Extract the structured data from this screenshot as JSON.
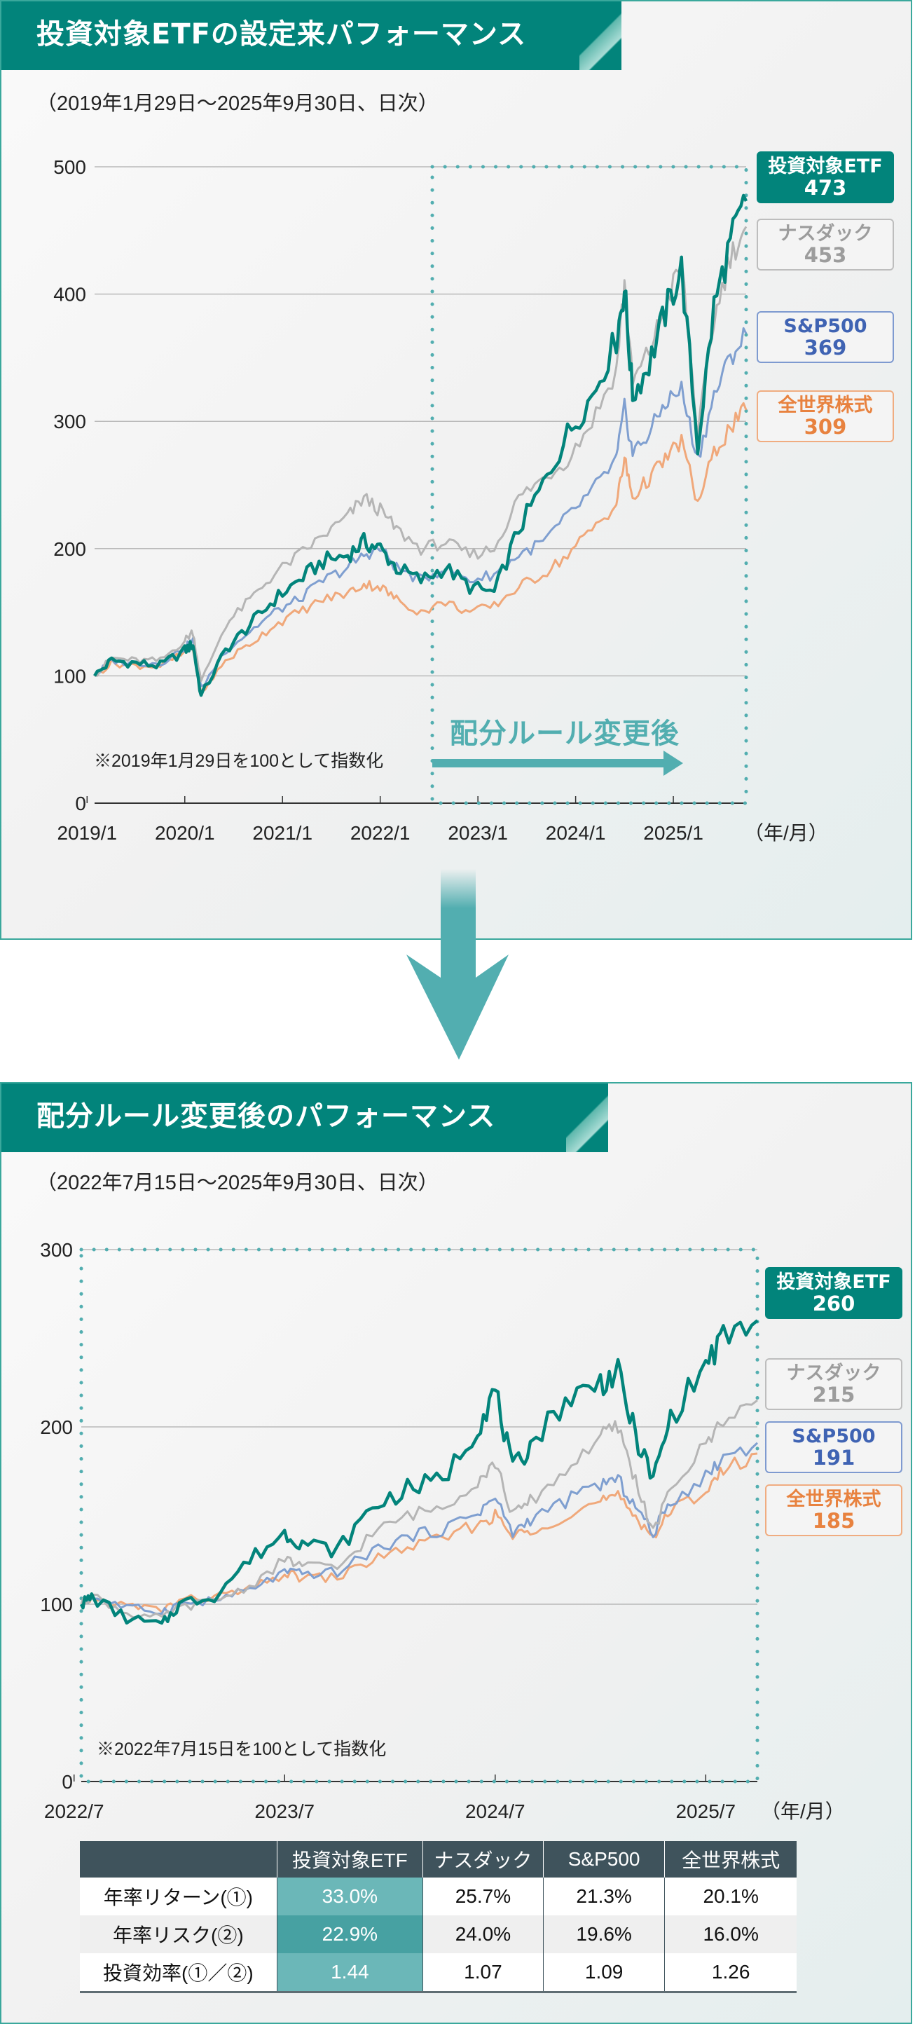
{
  "panel1": {
    "title": "投資対象ETFの設定来パフォーマンス",
    "subtitle": "（2019年1月29日～2025年9月30日、日次）",
    "note": "※2019年1月29日を100として指数化",
    "after_rule_label": "配分ルール変更後",
    "x_unit": "（年/月）",
    "legend": [
      {
        "name": "投資対象ETF",
        "value": "473"
      },
      {
        "name": "ナスダック",
        "value": "453"
      },
      {
        "name": "S&P500",
        "value": "369"
      },
      {
        "name": "全世界株式",
        "value": "309"
      }
    ]
  },
  "panel2": {
    "title": "配分ルール変更後のパフォーマンス",
    "subtitle": "（2022年7月15日～2025年9月30日、日次）",
    "note": "※2022年7月15日を100として指数化",
    "x_unit": "（年/月）",
    "legend": [
      {
        "name": "投資対象ETF",
        "value": "260"
      },
      {
        "name": "ナスダック",
        "value": "215"
      },
      {
        "name": "S&P500",
        "value": "191"
      },
      {
        "name": "全世界株式",
        "value": "185"
      }
    ]
  },
  "colors": {
    "etf": "#02847b",
    "nasdaq": "#b5b5b5",
    "sp500": "#7f9fd0",
    "world": "#f0a87a",
    "accent": "#52aeb0",
    "header": "#02847b"
  },
  "table": {
    "headers": [
      "",
      "投資対象ETF",
      "ナスダック",
      "S&P500",
      "全世界株式"
    ],
    "rows": [
      {
        "label": "年率リターン(①)",
        "values": [
          "33.0%",
          "25.7%",
          "21.3%",
          "20.1%"
        ]
      },
      {
        "label": "年率リスク(②)",
        "values": [
          "22.9%",
          "24.0%",
          "19.6%",
          "16.0%"
        ]
      },
      {
        "label": "投資効率(①／②)",
        "values": [
          "1.44",
          "1.07",
          "1.09",
          "1.26"
        ]
      }
    ]
  },
  "chart_data": [
    {
      "type": "line",
      "title": "投資対象ETFの設定来パフォーマンス",
      "subtitle": "（2019年1月29日～2025年9月30日、日次）",
      "xlabel": "（年/月）",
      "ylabel": "",
      "ylim": [
        0,
        500
      ],
      "yticks": [
        0,
        100,
        200,
        300,
        400,
        500
      ],
      "xticks": [
        "2019/1",
        "2020/1",
        "2021/1",
        "2022/1",
        "2023/1",
        "2024/1",
        "2025/1"
      ],
      "grid": true,
      "legend_position": "right",
      "annotations": [
        "※2019年1月29日を100として指数化",
        "配分ルール変更後 (from 2022/7/15)"
      ],
      "highlight_region": {
        "start": "2022/7/15",
        "end": "2025/9/30"
      },
      "x": [
        "2019/1",
        "2019/4",
        "2019/7",
        "2019/10",
        "2020/1",
        "2020/2",
        "2020/3",
        "2020/6",
        "2020/9",
        "2020/12",
        "2021/3",
        "2021/6",
        "2021/9",
        "2021/11",
        "2022/1",
        "2022/3",
        "2022/6",
        "2022/9",
        "2022/12",
        "2023/3",
        "2023/6",
        "2023/9",
        "2023/12",
        "2024/3",
        "2024/6",
        "2024/7",
        "2024/8",
        "2024/10",
        "2024/12",
        "2025/2",
        "2025/4",
        "2025/6",
        "2025/8",
        "2025/9"
      ],
      "series": [
        {
          "name": "投資対象ETF",
          "values": [
            100,
            112,
            110,
            108,
            120,
            125,
            84,
            120,
            140,
            160,
            175,
            190,
            195,
            205,
            200,
            185,
            175,
            185,
            170,
            165,
            215,
            250,
            290,
            320,
            365,
            405,
            320,
            345,
            385,
            420,
            280,
            390,
            440,
            473
          ]
        },
        {
          "name": "ナスダック",
          "values": [
            100,
            114,
            112,
            112,
            128,
            135,
            95,
            140,
            160,
            180,
            195,
            210,
            225,
            240,
            230,
            215,
            200,
            205,
            195,
            200,
            240,
            255,
            270,
            300,
            340,
            410,
            330,
            355,
            390,
            425,
            290,
            380,
            430,
            453
          ]
        },
        {
          "name": "S&P500",
          "values": [
            100,
            112,
            110,
            110,
            122,
            128,
            90,
            120,
            135,
            150,
            160,
            175,
            185,
            195,
            200,
            185,
            175,
            185,
            175,
            180,
            195,
            205,
            225,
            245,
            270,
            310,
            275,
            290,
            315,
            325,
            270,
            320,
            350,
            369
          ]
        },
        {
          "name": "全世界株式",
          "values": [
            100,
            110,
            108,
            108,
            118,
            122,
            86,
            112,
            125,
            140,
            150,
            160,
            165,
            172,
            170,
            160,
            150,
            158,
            150,
            155,
            170,
            180,
            195,
            215,
            235,
            270,
            240,
            255,
            270,
            285,
            235,
            275,
            295,
            309
          ]
        }
      ]
    },
    {
      "type": "line",
      "title": "配分ルール変更後のパフォーマンス",
      "subtitle": "（2022年7月15日～2025年9月30日、日次）",
      "xlabel": "（年/月）",
      "ylabel": "",
      "ylim": [
        0,
        300
      ],
      "yticks": [
        0,
        100,
        200,
        300
      ],
      "xticks": [
        "2022/7",
        "2023/7",
        "2024/7",
        "2025/7"
      ],
      "grid": true,
      "legend_position": "right",
      "annotations": [
        "※2022年7月15日を100として指数化"
      ],
      "x": [
        "2022/7",
        "2022/8",
        "2022/10",
        "2022/12",
        "2023/1",
        "2023/3",
        "2023/5",
        "2023/7",
        "2023/8",
        "2023/10",
        "2023/12",
        "2024/2",
        "2024/4",
        "2024/6",
        "2024/7",
        "2024/8",
        "2024/9",
        "2024/11",
        "2025/1",
        "2025/2",
        "2025/3",
        "2025/4",
        "2025/5",
        "2025/7",
        "2025/8",
        "2025/9"
      ],
      "series": [
        {
          "name": "投資対象ETF",
          "values": [
            100,
            104,
            92,
            88,
            100,
            105,
            125,
            140,
            135,
            130,
            155,
            165,
            170,
            200,
            221,
            175,
            190,
            215,
            225,
            230,
            195,
            170,
            205,
            235,
            250,
            260
          ]
        },
        {
          "name": "ナスダック",
          "values": [
            100,
            105,
            95,
            92,
            98,
            102,
            110,
            125,
            122,
            120,
            140,
            150,
            155,
            170,
            180,
            150,
            158,
            175,
            195,
            200,
            170,
            140,
            165,
            190,
            205,
            215
          ]
        },
        {
          "name": "S&P500",
          "values": [
            100,
            104,
            98,
            96,
            100,
            102,
            108,
            118,
            117,
            118,
            130,
            138,
            142,
            152,
            160,
            140,
            148,
            158,
            168,
            170,
            155,
            140,
            158,
            172,
            183,
            191
          ]
        },
        {
          "name": "全世界株式",
          "values": [
            100,
            103,
            99,
            97,
            102,
            104,
            108,
            117,
            115,
            115,
            125,
            132,
            137,
            145,
            150,
            138,
            142,
            150,
            158,
            160,
            150,
            138,
            152,
            165,
            175,
            185
          ]
        }
      ]
    }
  ]
}
